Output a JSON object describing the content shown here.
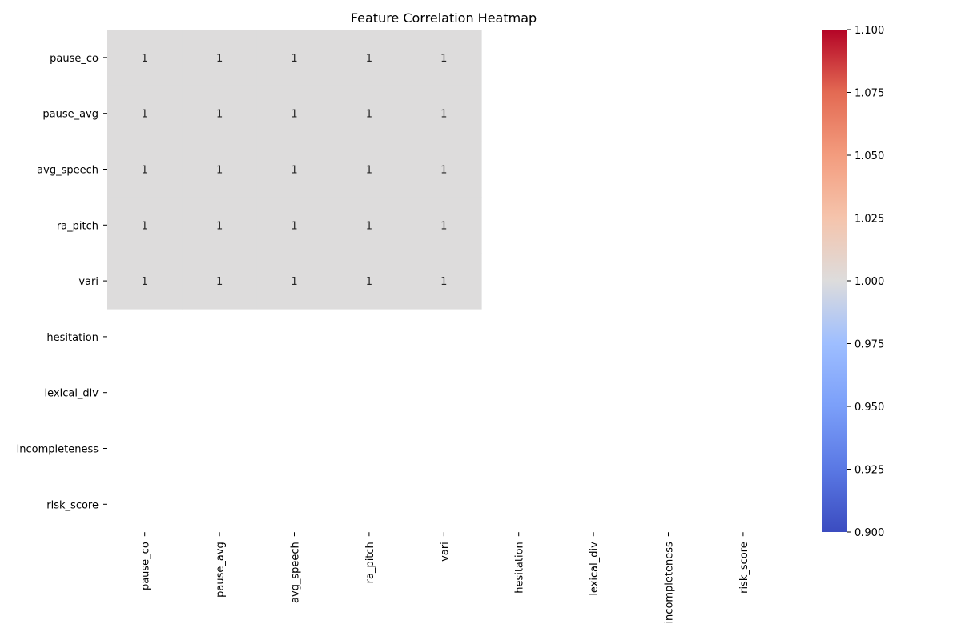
{
  "chart_data": {
    "type": "heatmap",
    "title": "Feature Correlation Heatmap",
    "xlabel": "",
    "ylabel": "",
    "rows": [
      "pause_co",
      "pause_avg",
      "avg_speech",
      "ra_pitch",
      "vari",
      "hesitation",
      "lexical_div",
      "incompleteness",
      "risk_score"
    ],
    "columns": [
      "pause_co",
      "pause_avg",
      "avg_speech",
      "ra_pitch",
      "vari",
      "hesitation",
      "lexical_div",
      "incompleteness",
      "risk_score"
    ],
    "values": [
      [
        1,
        1,
        1,
        1,
        1,
        null,
        null,
        null,
        null
      ],
      [
        1,
        1,
        1,
        1,
        1,
        null,
        null,
        null,
        null
      ],
      [
        1,
        1,
        1,
        1,
        1,
        null,
        null,
        null,
        null
      ],
      [
        1,
        1,
        1,
        1,
        1,
        null,
        null,
        null,
        null
      ],
      [
        1,
        1,
        1,
        1,
        1,
        null,
        null,
        null,
        null
      ],
      [
        null,
        null,
        null,
        null,
        null,
        null,
        null,
        null,
        null
      ],
      [
        null,
        null,
        null,
        null,
        null,
        null,
        null,
        null,
        null
      ],
      [
        null,
        null,
        null,
        null,
        null,
        null,
        null,
        null,
        null
      ],
      [
        null,
        null,
        null,
        null,
        null,
        null,
        null,
        null,
        null
      ]
    ],
    "annotations": true,
    "colormap": "coolwarm",
    "colorbar": {
      "range": [
        0.9,
        1.1
      ],
      "ticks": [
        "0.900",
        "0.925",
        "0.950",
        "0.975",
        "1.000",
        "1.025",
        "1.050",
        "1.075",
        "1.100"
      ],
      "low_color": "#3b4cc0",
      "mid_color": "#dddcdc",
      "high_color": "#b40426"
    }
  }
}
